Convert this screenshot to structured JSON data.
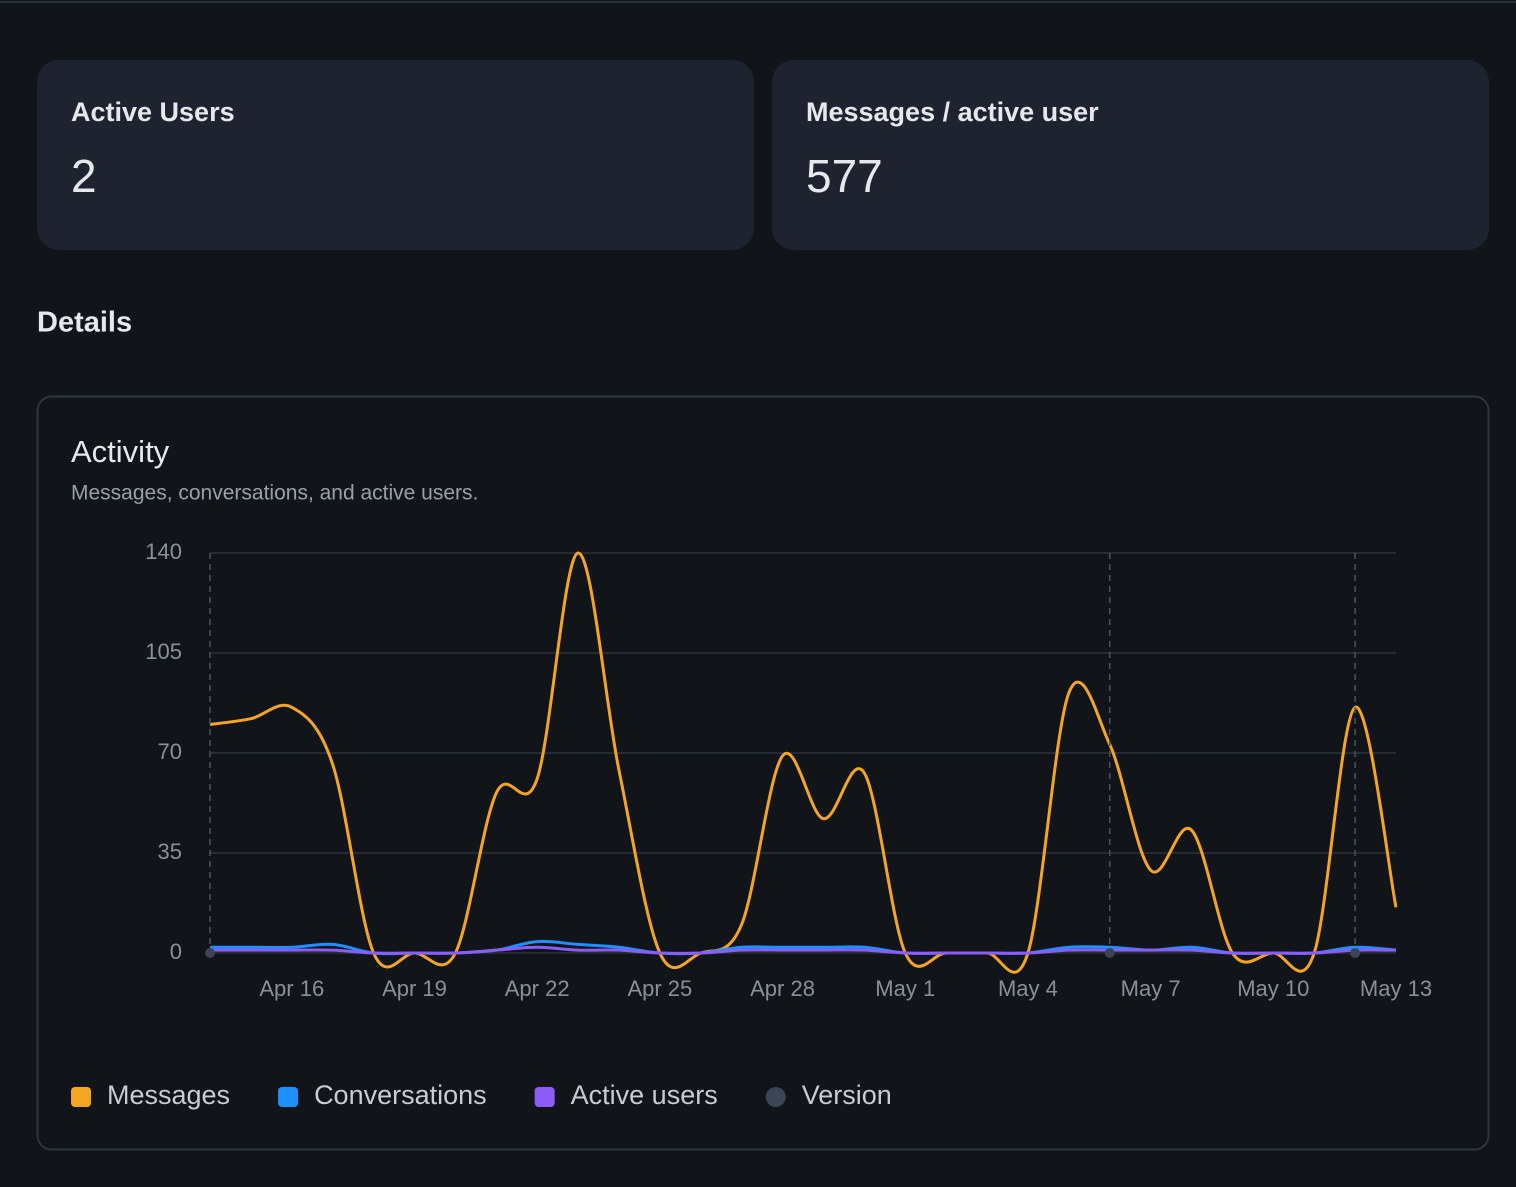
{
  "cards": [
    {
      "label": "Active Users",
      "value": 2
    },
    {
      "label": "Messages / active user",
      "value": 577
    }
  ],
  "section": "Details",
  "chart_data": {
    "type": "line",
    "title": "Activity",
    "subtitle": "Messages, conversations, and active users.",
    "categories": [
      null,
      null,
      "Apr 16",
      null,
      null,
      "Apr 19",
      null,
      null,
      "Apr 22",
      null,
      null,
      "Apr 25",
      null,
      null,
      "Apr 28",
      null,
      null,
      "May 1",
      null,
      null,
      "May 4",
      null,
      null,
      "May 7",
      null,
      null,
      "May 10",
      null,
      null,
      "May 13"
    ],
    "series": [
      {
        "name": "Messages",
        "color": "#f5a524",
        "style": "line",
        "values": [
          80,
          82,
          86,
          66,
          0,
          0,
          0,
          56,
          61,
          140,
          64,
          0,
          0,
          10,
          69,
          47,
          63,
          0,
          0,
          0,
          0,
          91,
          73,
          29,
          43,
          0,
          0,
          0,
          86,
          16
        ]
      },
      {
        "name": "Conversations",
        "color": "#1e8fff",
        "style": "line",
        "values": [
          2,
          2,
          2,
          3,
          0,
          0,
          0,
          1,
          4,
          3,
          2,
          0,
          0,
          2,
          2,
          2,
          2,
          0,
          0,
          0,
          0,
          2,
          2,
          1,
          2,
          0,
          0,
          0,
          2,
          1
        ]
      },
      {
        "name": "Active users",
        "color": "#8b5cf6",
        "style": "line",
        "values": [
          1,
          1,
          1,
          1,
          0,
          0,
          0,
          1,
          2,
          1,
          1,
          0,
          0,
          1,
          1,
          1,
          1,
          0,
          0,
          0,
          0,
          1,
          1,
          1,
          1,
          0,
          0,
          0,
          1,
          1
        ]
      },
      {
        "name": "Version",
        "color": "#3b4556",
        "style": "dot",
        "values": [
          0,
          null,
          null,
          null,
          null,
          null,
          null,
          null,
          null,
          null,
          null,
          null,
          null,
          null,
          null,
          null,
          null,
          null,
          null,
          null,
          null,
          null,
          0,
          null,
          null,
          null,
          null,
          null,
          0,
          null
        ]
      }
    ],
    "ylim": [
      0,
      140
    ],
    "yticks": [
      0,
      35,
      70,
      105,
      140
    ],
    "grid": true,
    "legend": "bottom-left"
  }
}
